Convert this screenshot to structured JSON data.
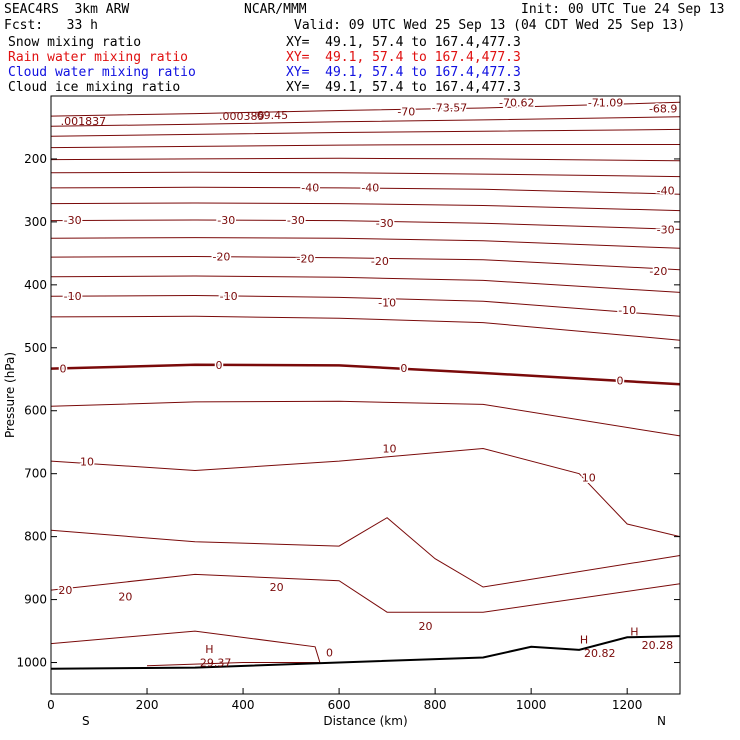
{
  "header": {
    "model": "SEAC4RS  3km ARW",
    "org": "NCAR/MMM",
    "init": "Init: 00 UTC Tue 24 Sep 13",
    "fcst": "Fcst:   33 h",
    "valid": "Valid: 09 UTC Wed 25 Sep 13 (04 CDT Wed 25 Sep 13)",
    "fields": [
      {
        "name": "Snow mixing ratio",
        "xy": "XY=  49.1, 57.4 to 167.4,477.3",
        "color": "#000000"
      },
      {
        "name": "Rain water mixing ratio",
        "xy": "XY=  49.1, 57.4 to 167.4,477.3",
        "color": "#e01010"
      },
      {
        "name": "Cloud water mixing ratio",
        "xy": "XY=  49.1, 57.4 to 167.4,477.3",
        "color": "#1010e0"
      },
      {
        "name": "Cloud ice mixing ratio",
        "xy": "XY=  49.1, 57.4 to 167.4,477.3",
        "color": "#000000"
      }
    ]
  },
  "chart_data": {
    "type": "line",
    "title": "",
    "xlabel": "Distance (km)",
    "ylabel": "Pressure (hPa)",
    "x_ticks": [
      0,
      200,
      400,
      600,
      800,
      1000,
      1200
    ],
    "y_ticks": [
      200,
      300,
      400,
      500,
      600,
      700,
      800,
      900,
      1000
    ],
    "xlim": [
      0,
      1310
    ],
    "ylim": [
      1050,
      100
    ],
    "orientation_labels": {
      "left": "S",
      "right": "N"
    },
    "contour_color": "#7a0a0a",
    "temperature_contours": [
      {
        "level": -70,
        "x": [
          0,
          300,
          600,
          900,
          1310
        ],
        "p": [
          132,
          128,
          123,
          119,
          110
        ]
      },
      {
        "level": -65,
        "x": [
          0,
          300,
          600,
          900,
          1310
        ],
        "p": [
          148,
          145,
          141,
          138,
          133
        ]
      },
      {
        "level": -60,
        "x": [
          0,
          300,
          600,
          900,
          1310
        ],
        "p": [
          164,
          161,
          158,
          156,
          153
        ]
      },
      {
        "level": -55,
        "x": [
          0,
          300,
          600,
          900,
          1310
        ],
        "p": [
          182,
          180,
          178,
          177,
          177
        ]
      },
      {
        "level": -50,
        "x": [
          0,
          300,
          600,
          900,
          1310
        ],
        "p": [
          201,
          200,
          199,
          200,
          203
        ]
      },
      {
        "level": -45,
        "x": [
          0,
          300,
          600,
          900,
          1310
        ],
        "p": [
          222,
          221,
          222,
          224,
          228
        ]
      },
      {
        "level": -40,
        "x": [
          0,
          300,
          600,
          900,
          1310
        ],
        "p": [
          246,
          245,
          246,
          248,
          256
        ]
      },
      {
        "level": -35,
        "x": [
          0,
          300,
          600,
          900,
          1310
        ],
        "p": [
          271,
          270,
          271,
          274,
          282
        ]
      },
      {
        "level": -30,
        "x": [
          0,
          300,
          600,
          900,
          1310
        ],
        "p": [
          298,
          297,
          298,
          302,
          312
        ]
      },
      {
        "level": -25,
        "x": [
          0,
          300,
          600,
          900,
          1310
        ],
        "p": [
          326,
          325,
          326,
          330,
          342
        ]
      },
      {
        "level": -20,
        "x": [
          0,
          300,
          600,
          900,
          1310
        ],
        "p": [
          356,
          355,
          357,
          360,
          376
        ]
      },
      {
        "level": -15,
        "x": [
          0,
          300,
          600,
          900,
          1310
        ],
        "p": [
          387,
          386,
          388,
          393,
          412
        ]
      },
      {
        "level": -10,
        "x": [
          0,
          300,
          600,
          900,
          1310
        ],
        "p": [
          418,
          417,
          420,
          426,
          450
        ]
      },
      {
        "level": -5,
        "x": [
          0,
          300,
          600,
          900,
          1310
        ],
        "p": [
          451,
          450,
          453,
          460,
          488
        ]
      },
      {
        "level": 0,
        "x": [
          0,
          300,
          600,
          900,
          1310
        ],
        "p": [
          533,
          527,
          528,
          540,
          558
        ]
      },
      {
        "level": 5,
        "x": [
          0,
          300,
          600,
          900,
          1310
        ],
        "p": [
          593,
          586,
          585,
          590,
          640
        ]
      },
      {
        "level": 10,
        "x": [
          0,
          300,
          600,
          900,
          1100,
          1200,
          1310
        ],
        "p": [
          680,
          695,
          680,
          660,
          700,
          780,
          800
        ]
      },
      {
        "level": 15,
        "x": [
          0,
          300,
          600,
          700,
          800,
          900,
          1310
        ],
        "p": [
          790,
          808,
          815,
          770,
          835,
          880,
          830
        ]
      },
      {
        "level": 20,
        "x": [
          0,
          300,
          600,
          700,
          900,
          1310
        ],
        "p": [
          885,
          860,
          870,
          920,
          920,
          875
        ]
      },
      {
        "level": 25,
        "x": [
          0,
          300,
          550,
          560,
          400,
          200
        ],
        "p": [
          970,
          950,
          975,
          1000,
          1000,
          1005
        ]
      }
    ],
    "terrain": {
      "x": [
        0,
        300,
        600,
        900,
        1000,
        1100,
        1200,
        1310
      ],
      "p": [
        1010,
        1008,
        1000,
        992,
        975,
        980,
        960,
        958
      ]
    },
    "contour_labels": [
      {
        "text": "-73.57",
        "x": 830,
        "p": 118
      },
      {
        "text": "-70",
        "x": 740,
        "p": 125
      },
      {
        "text": "-70.62",
        "x": 970,
        "p": 110
      },
      {
        "text": "-71.09",
        "x": 1155,
        "p": 110
      },
      {
        "text": "-68.9",
        "x": 1275,
        "p": 120
      },
      {
        "text": "-40",
        "x": 540,
        "p": 245
      },
      {
        "text": "-40",
        "x": 665,
        "p": 245
      },
      {
        "text": "-40",
        "x": 1280,
        "p": 250
      },
      {
        "text": "-30",
        "x": 45,
        "p": 297
      },
      {
        "text": "-30",
        "x": 365,
        "p": 297
      },
      {
        "text": "-30",
        "x": 510,
        "p": 297
      },
      {
        "text": "-30",
        "x": 695,
        "p": 302
      },
      {
        "text": "-30",
        "x": 1280,
        "p": 312
      },
      {
        "text": "-20",
        "x": 355,
        "p": 355
      },
      {
        "text": "-20",
        "x": 530,
        "p": 358
      },
      {
        "text": "-20",
        "x": 685,
        "p": 362
      },
      {
        "text": "-20",
        "x": 1265,
        "p": 378
      },
      {
        "text": "-10",
        "x": 45,
        "p": 418
      },
      {
        "text": "-10",
        "x": 370,
        "p": 418
      },
      {
        "text": "-10",
        "x": 700,
        "p": 428
      },
      {
        "text": "-10",
        "x": 1200,
        "p": 440
      },
      {
        "text": "0",
        "x": 25,
        "p": 533
      },
      {
        "text": "0",
        "x": 350,
        "p": 527
      },
      {
        "text": "0",
        "x": 735,
        "p": 532
      },
      {
        "text": "0",
        "x": 1185,
        "p": 552
      },
      {
        "text": "10",
        "x": 75,
        "p": 681
      },
      {
        "text": "10",
        "x": 705,
        "p": 660
      },
      {
        "text": "10",
        "x": 1120,
        "p": 706
      },
      {
        "text": "20",
        "x": 30,
        "p": 885
      },
      {
        "text": "20",
        "x": 155,
        "p": 895
      },
      {
        "text": "20",
        "x": 470,
        "p": 880
      },
      {
        "text": "20",
        "x": 780,
        "p": 942
      },
      {
        "text": "0",
        "x": 580,
        "p": 984
      }
    ],
    "value_labels": [
      {
        "text": ".001837",
        "x": 20,
        "p": 140
      },
      {
        "text": ".000389",
        "x": 350,
        "p": 132
      },
      {
        "text": "-69.45",
        "x": 420,
        "p": 130
      },
      {
        "text": "29.37",
        "x": 310,
        "p": 1000
      },
      {
        "text": "20.82",
        "x": 1110,
        "p": 985
      },
      {
        "text": "20.28",
        "x": 1230,
        "p": 972
      }
    ],
    "highs": [
      {
        "text": "H",
        "x": 330,
        "p": 985
      },
      {
        "text": "H",
        "x": 1110,
        "p": 970
      },
      {
        "text": "H",
        "x": 1215,
        "p": 957
      }
    ],
    "grid": false,
    "legend": "none"
  }
}
